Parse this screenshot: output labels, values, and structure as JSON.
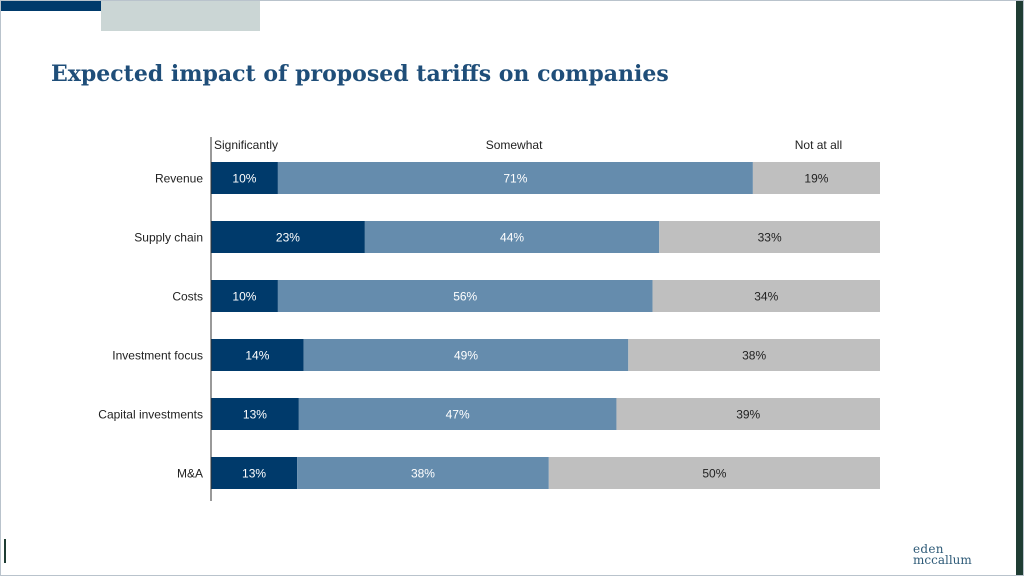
{
  "title": "Expected impact of proposed tariffs on companies",
  "logo": {
    "line1": "eden",
    "line2": "mccallum"
  },
  "colors": {
    "accent_dark": "#003a6b",
    "accent_light": "#cbd6d5",
    "edge": "#1f3d33",
    "title": "#1f4e79",
    "significantly": "#003a6b",
    "somewhat": "#658cad",
    "not_at_all": "#bfbfbf",
    "label_light": "#ffffff",
    "label_dark": "#222222"
  },
  "chart_data": {
    "type": "bar",
    "orientation": "horizontal",
    "stacked": true,
    "percent_scale": true,
    "categories": [
      "Revenue",
      "Supply chain",
      "Costs",
      "Investment focus",
      "Capital investments",
      "M&A"
    ],
    "series": [
      {
        "name": "Significantly",
        "values": [
          10,
          23,
          10,
          14,
          13,
          13
        ],
        "labels": [
          "10%",
          "23%",
          "10%",
          "14%",
          "13%",
          "13%"
        ],
        "color": "#003a6b"
      },
      {
        "name": "Somewhat",
        "values": [
          71,
          44,
          56,
          49,
          47,
          38
        ],
        "labels": [
          "71%",
          "44%",
          "56%",
          "49%",
          "47%",
          "38%"
        ],
        "color": "#658cad"
      },
      {
        "name": "Not at all",
        "values": [
          19,
          33,
          34,
          38,
          39,
          50
        ],
        "labels": [
          "19%",
          "33%",
          "34%",
          "38%",
          "39%",
          "50%"
        ],
        "color": "#bfbfbf"
      }
    ],
    "legend": "top, series names above their segments",
    "xlim": [
      0,
      100
    ],
    "grid": false
  }
}
